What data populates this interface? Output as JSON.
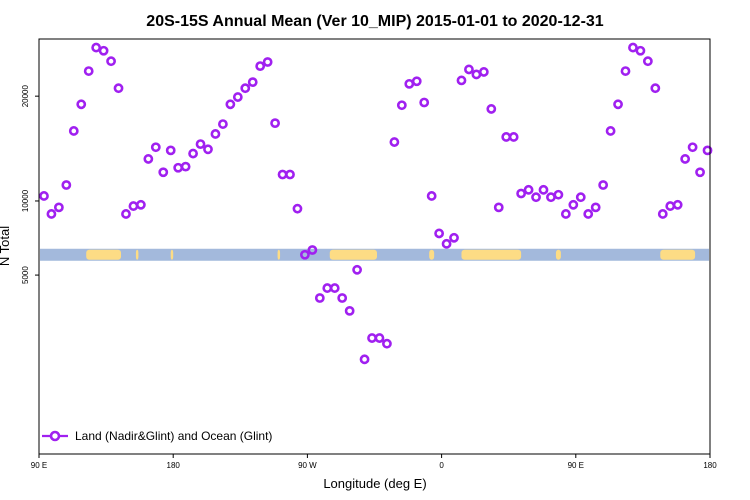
{
  "chart_data": {
    "type": "scatter",
    "title": "20S-15S Annual Mean (Ver 10_MIP)   2015-01-01 to 2020-12-31",
    "xlabel": "Longitude (deg E)",
    "ylabel": "N Total",
    "xlim": [
      -90,
      180
    ],
    "ylim": [
      0,
      26900
    ],
    "y_scale": "sqrt",
    "x_ticks": [
      {
        "value": -90,
        "label": "90 E"
      },
      {
        "value": -36,
        "label": "180"
      },
      {
        "value": 18,
        "label": "90 W"
      },
      {
        "value": 72,
        "label": "0"
      },
      {
        "value": 126,
        "label": "90 E"
      },
      {
        "value": 180,
        "label": "180"
      }
    ],
    "y_ticks": [
      {
        "value": 5000,
        "label": "5000"
      },
      {
        "value": 10000,
        "label": "10000"
      },
      {
        "value": 20000,
        "label": "20000"
      }
    ],
    "series": [
      {
        "name": "Land (Nadir&Glint) and Ocean (Glint)",
        "color": "#a020f0",
        "marker": "open-circle",
        "x": [
          -88,
          -85,
          -82,
          -79,
          -76,
          -73,
          -70,
          -67,
          -64,
          -61,
          -58,
          -55,
          -52,
          -49,
          -46,
          -43,
          -40,
          -37,
          -34,
          -31,
          -28,
          -25,
          -22,
          -19,
          -16,
          -13,
          -10,
          -7,
          -4,
          -1,
          2,
          5,
          8,
          11,
          14,
          17,
          20,
          23,
          26,
          29,
          32,
          35,
          38,
          41,
          44,
          47,
          50,
          53,
          56,
          59,
          62,
          65,
          68,
          71,
          74,
          77,
          80,
          83,
          86,
          89,
          92,
          95,
          98,
          101,
          104,
          107,
          110,
          113,
          116,
          119,
          122,
          125,
          128,
          131,
          134,
          137,
          140,
          143,
          146,
          149,
          152,
          155,
          158,
          161,
          164,
          167,
          170,
          173,
          176,
          179
        ],
        "y": [
          10400,
          9000,
          9500,
          11300,
          16300,
          19100,
          22900,
          25800,
          25400,
          24100,
          20900,
          9000,
          9600,
          9700,
          13600,
          14700,
          12400,
          14400,
          12800,
          12900,
          14100,
          15000,
          14500,
          16000,
          17000,
          19100,
          19900,
          20900,
          21600,
          23500,
          24000,
          17100,
          12200,
          12200,
          9400,
          6200,
          6500,
          3800,
          4300,
          4300,
          3800,
          3200,
          5300,
          1400,
          2100,
          2100,
          1900,
          15200,
          19000,
          21400,
          21700,
          19300,
          10400,
          7600,
          6900,
          7300,
          21800,
          23100,
          22500,
          22800,
          18600,
          9500,
          15700,
          15700,
          10600,
          10900,
          10300,
          10900,
          10300,
          10500,
          9000,
          9700,
          10300,
          9000,
          9500,
          11300,
          16300,
          19100,
          22900,
          25800,
          25400,
          24100,
          20900,
          9000,
          9600,
          9700,
          13600,
          14700,
          12400,
          14400
        ]
      }
    ],
    "map_strip": {
      "value": 6200,
      "ocean_color": "#a3b9dc",
      "land_color": "#fddc85",
      "land_segments": [
        [
          -71,
          -57
        ],
        [
          -51,
          -50
        ],
        [
          -37,
          -36
        ],
        [
          6,
          7
        ],
        [
          27,
          46
        ],
        [
          67,
          69
        ],
        [
          80,
          104
        ],
        [
          118,
          120
        ],
        [
          160,
          174
        ]
      ]
    },
    "legend": {
      "position": "bottom-left",
      "label": "Land (Nadir&Glint) and Ocean (Glint)"
    }
  }
}
